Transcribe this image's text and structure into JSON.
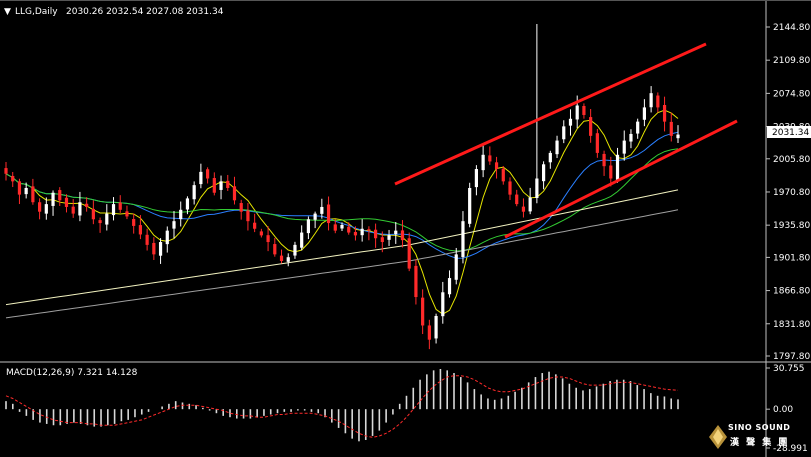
{
  "header": {
    "menu_glyph": "▼",
    "symbol_timeframe": "LLG,Daily",
    "ohlc": "2030.26 2032.54 2027.08 2031.34"
  },
  "price_axis": {
    "ticks": [
      "2144.80",
      "2109.80",
      "2074.80",
      "2039.80",
      "2005.80",
      "1970.80",
      "1935.80",
      "1901.80",
      "1866.80",
      "1831.80",
      "1797.80"
    ],
    "current_price": "2031.34"
  },
  "macd": {
    "label": "MACD(12,26,9) 7.321 14.128",
    "ticks": [
      "30.755",
      "0.00",
      "-28.991"
    ]
  },
  "logo": {
    "line1": "SINO SOUND",
    "line2": "漢 聲 集 團",
    "icon": "gold-diamond-logo-icon"
  },
  "colors": {
    "background": "#000000",
    "bull_candle": "#ffffff",
    "bear_candle": "#ff2a2a",
    "wick": "#ffffff",
    "channel": "#ff1a1a",
    "ma_fast": "#e6e600",
    "ma_mid": "#2a7fff",
    "ma_green": "#33cc33",
    "ma_slow": "#f2f2c0",
    "ma_slowest": "#a0a0a0",
    "macd_bar": "#d9d9d9",
    "macd_signal": "#ff2a2a",
    "separator": "#bfbfbf"
  },
  "chart_data": {
    "type": "candlestick",
    "symbol": "LLG",
    "timeframe": "Daily",
    "ylim": [
      1797.8,
      2158
    ],
    "closes": [
      1990,
      1982,
      1968,
      1975,
      1960,
      1950,
      1958,
      1970,
      1962,
      1955,
      1948,
      1960,
      1955,
      1942,
      1938,
      1948,
      1958,
      1952,
      1945,
      1935,
      1926,
      1915,
      1905,
      1918,
      1930,
      1940,
      1952,
      1964,
      1978,
      1992,
      1985,
      1970,
      1982,
      1975,
      1962,
      1950,
      1940,
      1932,
      1925,
      1918,
      1905,
      1898,
      1902,
      1915,
      1928,
      1942,
      1948,
      1955,
      1938,
      1930,
      1936,
      1928,
      1925,
      1932,
      1930,
      1922,
      1918,
      1925,
      1930,
      1920,
      1890,
      1860,
      1830,
      1815,
      1840,
      1865,
      1880,
      1905,
      1940,
      1975,
      1995,
      2010,
      2003,
      1995,
      1982,
      1968,
      1958,
      1950,
      1965,
      1985,
      2000,
      2012,
      2025,
      2040,
      2048,
      2062,
      2052,
      2030,
      2012,
      1998,
      1985,
      2010,
      2025,
      2032,
      2045,
      2060,
      2075,
      2060,
      2045,
      2030,
      2031.34
    ],
    "macd_values": [
      6,
      4,
      -2,
      -5,
      -8,
      -10,
      -11,
      -12,
      -12,
      -11,
      -10,
      -11,
      -12,
      -13,
      -13,
      -12,
      -11,
      -9,
      -8,
      -6,
      -4,
      -2,
      0,
      2,
      4,
      6,
      5,
      4,
      3,
      1,
      -1,
      -3,
      -5,
      -6,
      -7,
      -7,
      -7,
      -6,
      -5,
      -4,
      -3,
      -2,
      -2,
      -1,
      -1,
      -2,
      -3,
      -6,
      -10,
      -14,
      -18,
      -22,
      -24,
      -23,
      -20,
      -16,
      -10,
      -4,
      4,
      10,
      16,
      22,
      26,
      29,
      30,
      29,
      27,
      24,
      20,
      15,
      11,
      8,
      7,
      8,
      10,
      13,
      16,
      20,
      24,
      27,
      28,
      26,
      23,
      19,
      16,
      14,
      15,
      17,
      19,
      21,
      22,
      22,
      21,
      18,
      15,
      12,
      10,
      9.5,
      8,
      7.321
    ],
    "macd_signal_values": [
      10,
      8,
      5,
      2,
      -1,
      -4,
      -6,
      -8,
      -9,
      -10,
      -10,
      -10,
      -11,
      -11,
      -12,
      -12,
      -12,
      -11,
      -10,
      -9,
      -8,
      -6,
      -4,
      -2,
      0,
      2,
      3,
      3,
      3,
      2,
      1,
      0,
      -1,
      -3,
      -4,
      -5,
      -5,
      -6,
      -6,
      -5,
      -4,
      -4,
      -3,
      -3,
      -3,
      -3,
      -4,
      -5,
      -7,
      -9,
      -12,
      -15,
      -18,
      -20,
      -21,
      -20,
      -18,
      -15,
      -11,
      -6,
      0,
      6,
      12,
      17,
      21,
      24,
      25,
      25,
      24,
      22,
      19,
      16,
      14,
      13,
      13,
      14,
      15,
      17,
      19,
      21,
      23,
      24,
      24,
      23,
      21,
      19,
      18,
      18,
      18,
      19,
      20,
      20,
      20,
      19,
      18,
      17,
      16,
      15,
      14.5,
      14.128
    ]
  }
}
